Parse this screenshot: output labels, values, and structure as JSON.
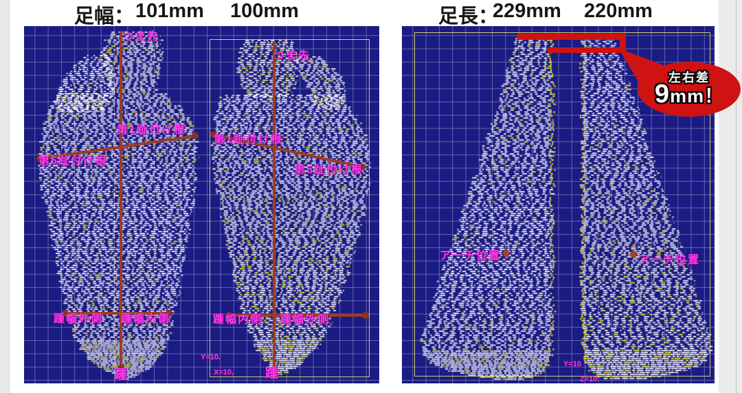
{
  "header": {
    "foot_width_label": "足幅：",
    "foot_width_left": "101mm",
    "foot_width_right": "100mm",
    "foot_length_label": "足長：",
    "foot_length_left": "229mm",
    "foot_length_right": "220mm"
  },
  "sole_view": {
    "foot1": {
      "toe": "つま先",
      "first_toe_base": "第1趾付け根",
      "fifth_toe_base": "第5趾付け根",
      "heel_width_outer": "踵幅外側",
      "heel_width_inner": "踵幅内側",
      "heel": "踵"
    },
    "foot2": {
      "toe": "つま先",
      "first_toe_base": "第1趾付け根",
      "fifth_toe_base": "第5趾付け根",
      "heel_width_inner": "踵幅内側",
      "heel_width_outer": "踵幅外側",
      "heel": "踵"
    },
    "axis_y": "Y=10,",
    "axis_x": "X=10,"
  },
  "side_view": {
    "arch_left": "アーチ位置",
    "arch_right": "アーチ位置",
    "axis_y": "Y=10",
    "axis_z": "Z=10",
    "diff_callout": {
      "label": "左右差",
      "value": "9",
      "unit": "mm！"
    }
  },
  "colors": {
    "panel_bg": "#1b1b84",
    "grid_line": "#8c8cc0",
    "point_cloud": "#ffffff",
    "point_cloud_accent": "#f2ef2a",
    "measure_line": "#9e3c22",
    "label_magenta": "#ff3af0",
    "callout_red": "#cf1212",
    "box_yellow": "#e4e45f"
  }
}
